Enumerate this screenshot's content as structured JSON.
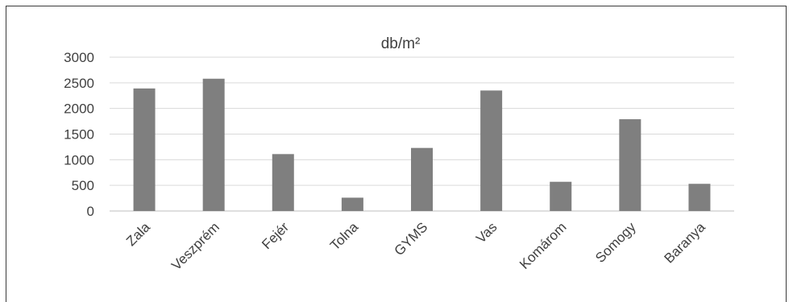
{
  "chart_data": {
    "type": "bar",
    "title": "db/m²",
    "categories": [
      "Zala",
      "Veszprém",
      "Fejér",
      "Tolna",
      "GYMS",
      "Vas",
      "Komárom",
      "Somogy",
      "Baranya"
    ],
    "values": [
      2390,
      2580,
      1110,
      260,
      1230,
      2350,
      570,
      1790,
      530
    ],
    "ylim": [
      0,
      3000
    ],
    "yticks": [
      "0",
      "500",
      "1000",
      "1500",
      "2000",
      "2500",
      "3000"
    ],
    "xlabel": "",
    "ylabel": "",
    "grid": true,
    "legend": "none",
    "bar_color": "#7f7f7f"
  }
}
